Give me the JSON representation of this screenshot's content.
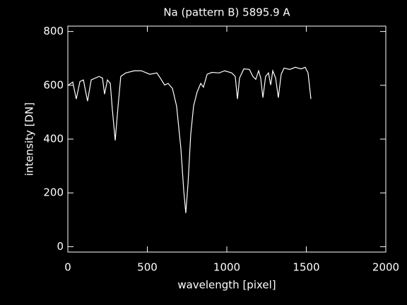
{
  "chart_data": {
    "type": "line",
    "title": "Na (pattern B) 5895.9 A",
    "xlabel": "wavelength [pixel]",
    "ylabel": "intensity [DN]",
    "x": [
      4,
      31,
      53,
      76,
      98,
      124,
      147,
      196,
      218,
      231,
      249,
      267,
      280,
      298,
      316,
      333,
      364,
      418,
      462,
      516,
      560,
      587,
      609,
      631,
      658,
      684,
      711,
      729,
      742,
      756,
      773,
      791,
      813,
      836,
      853,
      876,
      907,
      951,
      987,
      1031,
      1053,
      1067,
      1080,
      1107,
      1142,
      1164,
      1182,
      1200,
      1213,
      1227,
      1244,
      1262,
      1276,
      1289,
      1307,
      1324,
      1342,
      1360,
      1396,
      1431,
      1467,
      1493,
      1511,
      1529
    ],
    "series": [
      {
        "color": "#ffffff",
        "values": [
          601,
          612,
          549,
          614,
          620,
          541,
          620,
          633,
          627,
          567,
          620,
          607,
          510,
          395,
          523,
          633,
          646,
          654,
          654,
          641,
          646,
          622,
          601,
          607,
          588,
          523,
          366,
          209,
          125,
          235,
          418,
          523,
          575,
          607,
          593,
          641,
          648,
          646,
          654,
          646,
          633,
          549,
          627,
          661,
          659,
          633,
          622,
          654,
          627,
          554,
          633,
          646,
          601,
          654,
          627,
          554,
          641,
          664,
          659,
          667,
          661,
          667,
          646,
          549
        ]
      }
    ],
    "xlim": [
      0,
      2000
    ],
    "xticks": [
      0,
      500,
      1000,
      1500,
      2000
    ],
    "ylim": [
      -20,
      820
    ],
    "yticks": [
      0,
      200,
      400,
      600,
      800
    ]
  }
}
